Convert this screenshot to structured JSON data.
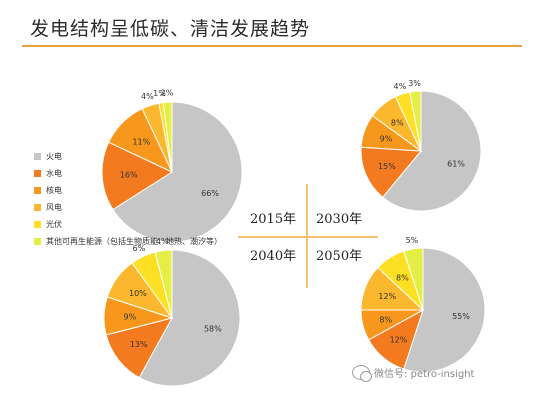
{
  "header": {
    "title": "发电结构呈低碳、清洁发展趋势"
  },
  "colors": {
    "火电": "#c6c6c6",
    "水电": "#f47a1f",
    "核电": "#f7981c",
    "风电": "#fbb72d",
    "光伏": "#fde024",
    "其他": "#e4ee45"
  },
  "legend": [
    {
      "label": "火电",
      "color_key": "火电"
    },
    {
      "label": "水电",
      "color_key": "水电"
    },
    {
      "label": "核电",
      "color_key": "核电"
    },
    {
      "label": "风电",
      "color_key": "风电"
    },
    {
      "label": "光伏",
      "color_key": "光伏"
    },
    {
      "label": "其他可再生能源（包括生物质能、地热、潮汐等）",
      "color_key": "其他"
    }
  ],
  "years": {
    "y2015": "2015年",
    "y2030": "2030年",
    "y2040": "2040年",
    "y2050": "2050年"
  },
  "watermark": {
    "text": "微信号: petro-insight"
  },
  "chart_data": [
    {
      "type": "pie",
      "name": "2015年",
      "labels": [
        "火电",
        "水电",
        "核电",
        "风电",
        "光伏",
        "其他"
      ],
      "values": [
        66,
        16,
        11,
        4,
        1,
        2
      ],
      "label_text": [
        "66%",
        "16%",
        "11%",
        "4%",
        "1%",
        "2%"
      ]
    },
    {
      "type": "pie",
      "name": "2030年",
      "labels": [
        "火电",
        "水电",
        "核电",
        "风电",
        "光伏",
        "其他"
      ],
      "values": [
        61,
        15,
        9,
        8,
        4,
        3
      ],
      "label_text": [
        "61%",
        "15%",
        "9%",
        "8%",
        "4%",
        "3%"
      ]
    },
    {
      "type": "pie",
      "name": "2040年",
      "labels": [
        "火电",
        "水电",
        "核电",
        "风电",
        "光伏",
        "其他"
      ],
      "values": [
        58,
        13,
        9,
        10,
        6,
        4
      ],
      "label_text": [
        "58%",
        "13%",
        "9%",
        "10%",
        "6%",
        "4%"
      ]
    },
    {
      "type": "pie",
      "name": "2050年",
      "labels": [
        "火电",
        "水电",
        "核电",
        "风电",
        "光伏",
        "其他"
      ],
      "values": [
        55,
        12,
        8,
        12,
        8,
        5
      ],
      "label_text": [
        "55%",
        "12%",
        "8%",
        "12%",
        "8%",
        "5%"
      ]
    }
  ]
}
